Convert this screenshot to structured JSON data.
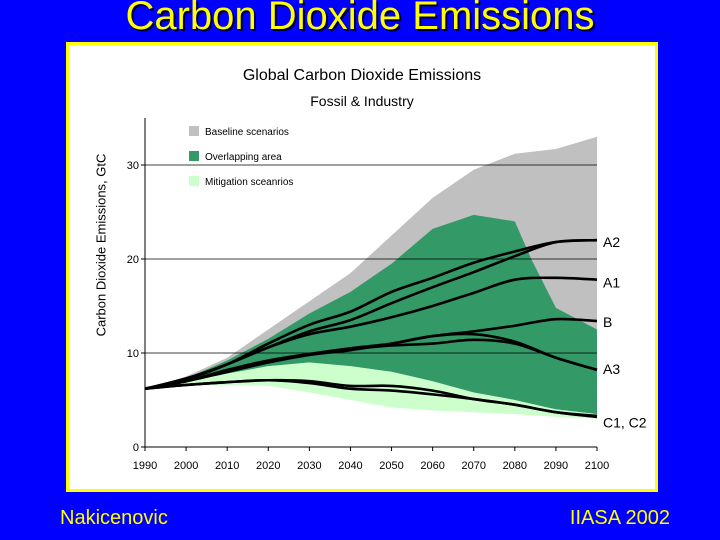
{
  "slide": {
    "title": "Carbon Dioxide Emissions",
    "footer_left": "Nakicenovic",
    "footer_right": "IIASA 2002"
  },
  "chart_data": {
    "type": "area",
    "title": "Global Carbon Dioxide Emissions",
    "subtitle": "Fossil & Industry",
    "xlabel": "",
    "ylabel": "Carbon Dioxide Emissions, GtC",
    "xlim": [
      1990,
      2100
    ],
    "ylim": [
      0,
      35
    ],
    "x_ticks": [
      "1990",
      "2000",
      "2010",
      "2020",
      "2030",
      "2040",
      "2050",
      "2060",
      "2070",
      "2080",
      "2090",
      "2100"
    ],
    "y_ticks": [
      "0",
      "10",
      "20",
      "30"
    ],
    "y_tick_values": [
      0,
      10,
      20,
      30
    ],
    "legend": [
      {
        "label": "Baseline scenarios",
        "color": "#c0c0c0"
      },
      {
        "label": "Overlapping area",
        "color": "#339966"
      },
      {
        "label": "Mitigation sceanrios",
        "color": "#ccffcc"
      }
    ],
    "legend_placement": "top-left",
    "bands": [
      {
        "key": "baseline",
        "color": "#c0c0c0",
        "x": [
          1990,
          2000,
          2010,
          2020,
          2030,
          2040,
          2050,
          2060,
          2070,
          2080,
          2090,
          2100
        ],
        "upper": [
          6.2,
          7.5,
          9.5,
          12.5,
          15.5,
          18.5,
          22.5,
          26.5,
          29.5,
          31.2,
          31.7,
          33.0
        ],
        "lower": [
          6.2,
          6.8,
          7.2,
          7.2,
          7.0,
          6.5,
          6.2,
          5.9,
          5.5,
          5.0,
          4.3,
          3.5
        ]
      },
      {
        "key": "overlapping",
        "color": "#339966",
        "x": [
          1990,
          2000,
          2010,
          2020,
          2030,
          2040,
          2050,
          2060,
          2070,
          2080,
          2084,
          2090,
          2100
        ],
        "upper": [
          6.2,
          7.3,
          9.2,
          11.5,
          14.2,
          16.5,
          19.5,
          23.2,
          24.7,
          24.0,
          20.0,
          14.8,
          12.5
        ],
        "lower": [
          6.2,
          6.8,
          7.8,
          8.6,
          8.9,
          8.6,
          8.0,
          7.0,
          5.8,
          5.0,
          4.5,
          4.0,
          3.5
        ]
      },
      {
        "key": "mitigation",
        "color": "#ccffcc",
        "x": [
          1990,
          2000,
          2010,
          2020,
          2030,
          2040,
          2050,
          2060,
          2070,
          2080,
          2090,
          2100
        ],
        "upper": [
          6.2,
          7.0,
          7.8,
          8.6,
          9.0,
          8.6,
          8.0,
          7.0,
          5.8,
          5.0,
          4.0,
          3.5
        ],
        "lower": [
          6.2,
          6.5,
          6.6,
          6.5,
          5.8,
          5.0,
          4.2,
          3.9,
          3.7,
          3.5,
          3.2,
          3.0
        ]
      }
    ],
    "series": [
      {
        "name": "A2",
        "x": [
          1990,
          2000,
          2010,
          2020,
          2030,
          2040,
          2050,
          2060,
          2070,
          2080,
          2090,
          2100
        ],
        "values": [
          6.2,
          7.3,
          8.8,
          10.6,
          12.3,
          13.5,
          15.3,
          17.0,
          18.6,
          20.3,
          21.8,
          22.0
        ]
      },
      {
        "name": "A1",
        "x": [
          1990,
          2000,
          2010,
          2020,
          2030,
          2040,
          2050,
          2060,
          2070,
          2080,
          2090,
          2100
        ],
        "values": [
          6.2,
          7.2,
          8.8,
          11.0,
          13.0,
          14.4,
          16.5,
          18.0,
          19.6,
          20.8,
          21.8,
          22.0
        ]
      },
      {
        "name": "",
        "x": [
          1990,
          2000,
          2010,
          2020,
          2030,
          2040,
          2050,
          2060,
          2070,
          2080,
          2090,
          2100
        ],
        "values": [
          6.2,
          7.2,
          8.8,
          10.6,
          12.0,
          12.8,
          13.8,
          15.0,
          16.4,
          17.8,
          18.0,
          17.8
        ]
      },
      {
        "name": "B",
        "x": [
          1990,
          2000,
          2010,
          2020,
          2030,
          2040,
          2050,
          2060,
          2070,
          2080,
          2090,
          2100
        ],
        "values": [
          6.2,
          7.0,
          8.2,
          9.2,
          9.9,
          10.5,
          11.0,
          11.8,
          12.3,
          12.9,
          13.6,
          13.4
        ]
      },
      {
        "name": "A3",
        "x": [
          1990,
          2000,
          2010,
          2020,
          2030,
          2040,
          2050,
          2060,
          2070,
          2080,
          2090,
          2100
        ],
        "values": [
          6.2,
          7.0,
          8.0,
          9.0,
          9.8,
          10.3,
          11.0,
          11.8,
          12.0,
          11.2,
          9.5,
          8.2
        ]
      },
      {
        "name": "",
        "x": [
          1990,
          2000,
          2010,
          2020,
          2030,
          2040,
          2050,
          2060,
          2070,
          2080,
          2090,
          2100
        ],
        "values": [
          6.2,
          7.0,
          8.0,
          9.0,
          9.8,
          10.4,
          10.8,
          11.0,
          11.4,
          11.0,
          9.5,
          8.2
        ]
      },
      {
        "name": "C1, C2",
        "x": [
          1990,
          2000,
          2010,
          2020,
          2030,
          2040,
          2050,
          2060,
          2070,
          2080,
          2090,
          2100
        ],
        "values": [
          6.2,
          6.6,
          6.9,
          7.1,
          7.0,
          6.5,
          6.5,
          6.0,
          5.1,
          4.5,
          3.7,
          3.3
        ]
      },
      {
        "name": "",
        "x": [
          1990,
          2000,
          2010,
          2020,
          2030,
          2040,
          2050,
          2060,
          2070,
          2080,
          2090,
          2100
        ],
        "values": [
          6.2,
          6.6,
          6.9,
          7.1,
          6.8,
          6.2,
          6.0,
          5.6,
          5.1,
          4.5,
          3.7,
          3.2
        ]
      }
    ],
    "series_labels": [
      {
        "text": "A2",
        "y": 21.8
      },
      {
        "text": "A1",
        "y": 17.5
      },
      {
        "text": "B",
        "y": 13.3
      },
      {
        "text": "A3",
        "y": 8.3
      },
      {
        "text": "C1, C2",
        "y": 2.6
      }
    ]
  }
}
